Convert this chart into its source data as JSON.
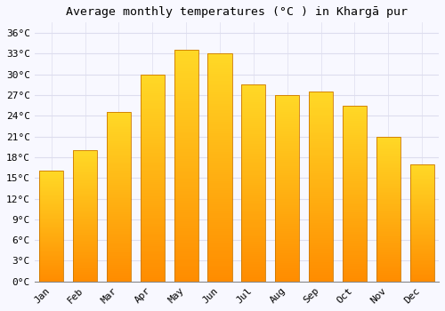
{
  "title": "Average monthly temperatures (°C ) in Khargā pur",
  "months": [
    "Jan",
    "Feb",
    "Mar",
    "Apr",
    "May",
    "Jun",
    "Jul",
    "Aug",
    "Sep",
    "Oct",
    "Nov",
    "Dec"
  ],
  "values": [
    16.0,
    19.0,
    24.5,
    30.0,
    33.5,
    33.0,
    28.5,
    27.0,
    27.5,
    25.5,
    21.0,
    17.0
  ],
  "bar_color": "#FFA500",
  "bar_color_top": "#FFD050",
  "bar_color_bottom": "#FF8C00",
  "bar_edge_color": "#CC7700",
  "background_color": "#F8F8FF",
  "grid_color": "#DDDDEE",
  "ytick_labels": [
    "0°C",
    "3°C",
    "6°C",
    "9°C",
    "12°C",
    "15°C",
    "18°C",
    "21°C",
    "24°C",
    "27°C",
    "30°C",
    "33°C",
    "36°C"
  ],
  "ytick_values": [
    0,
    3,
    6,
    9,
    12,
    15,
    18,
    21,
    24,
    27,
    30,
    33,
    36
  ],
  "ylim": [
    0,
    37.5
  ],
  "title_fontsize": 9.5,
  "tick_fontsize": 8,
  "font_family": "monospace",
  "bar_width": 0.72
}
